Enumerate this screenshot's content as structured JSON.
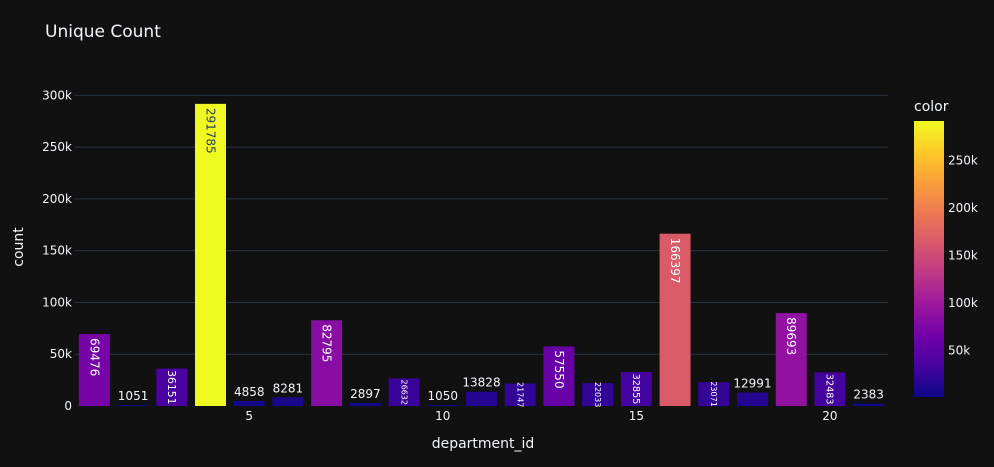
{
  "chart_data": {
    "type": "bar",
    "title": "Unique Count",
    "xlabel": "department_id",
    "ylabel": "count",
    "x": [
      1,
      2,
      3,
      4,
      5,
      6,
      7,
      8,
      9,
      10,
      11,
      12,
      13,
      14,
      15,
      16,
      17,
      18,
      19,
      20,
      21
    ],
    "values": [
      69476,
      1051,
      36151,
      291785,
      4858,
      8281,
      82795,
      2897,
      26632,
      1050,
      13828,
      21747,
      57550,
      22033,
      32855,
      166397,
      23071,
      12991,
      89693,
      32483,
      2383
    ],
    "value_labels": [
      "69476",
      "1051",
      "36151",
      "291785",
      "4858",
      "8281",
      "82795",
      "2897",
      "26632",
      "1050",
      "13828",
      "21747",
      "57550",
      "22033",
      "32855",
      "166397",
      "23071",
      "12991",
      "89693",
      "32483",
      "2383"
    ],
    "xticks": [
      5,
      10,
      15,
      20
    ],
    "xtick_labels": [
      "5",
      "10",
      "15",
      "20"
    ],
    "xlim": [
      0.5,
      21.5
    ],
    "yticks": [
      0,
      50000,
      100000,
      150000,
      200000,
      250000,
      300000
    ],
    "ytick_labels": [
      "0",
      "50k",
      "100k",
      "150k",
      "200k",
      "250k",
      "300k"
    ],
    "ylim": [
      0,
      310000
    ],
    "grid": true,
    "colorbar": {
      "title": "color",
      "ticks": [
        50000,
        100000,
        150000,
        200000,
        250000
      ],
      "tick_labels": [
        "50k",
        "100k",
        "150k",
        "200k",
        "250k"
      ],
      "range": [
        1050,
        291785
      ],
      "placement": "right"
    },
    "colorscale": [
      "#0d0887",
      "#46039f",
      "#7201a8",
      "#9c179e",
      "#bd3786",
      "#d8576b",
      "#ed7953",
      "#fb9f3a",
      "#fdca26",
      "#f0f921"
    ]
  }
}
